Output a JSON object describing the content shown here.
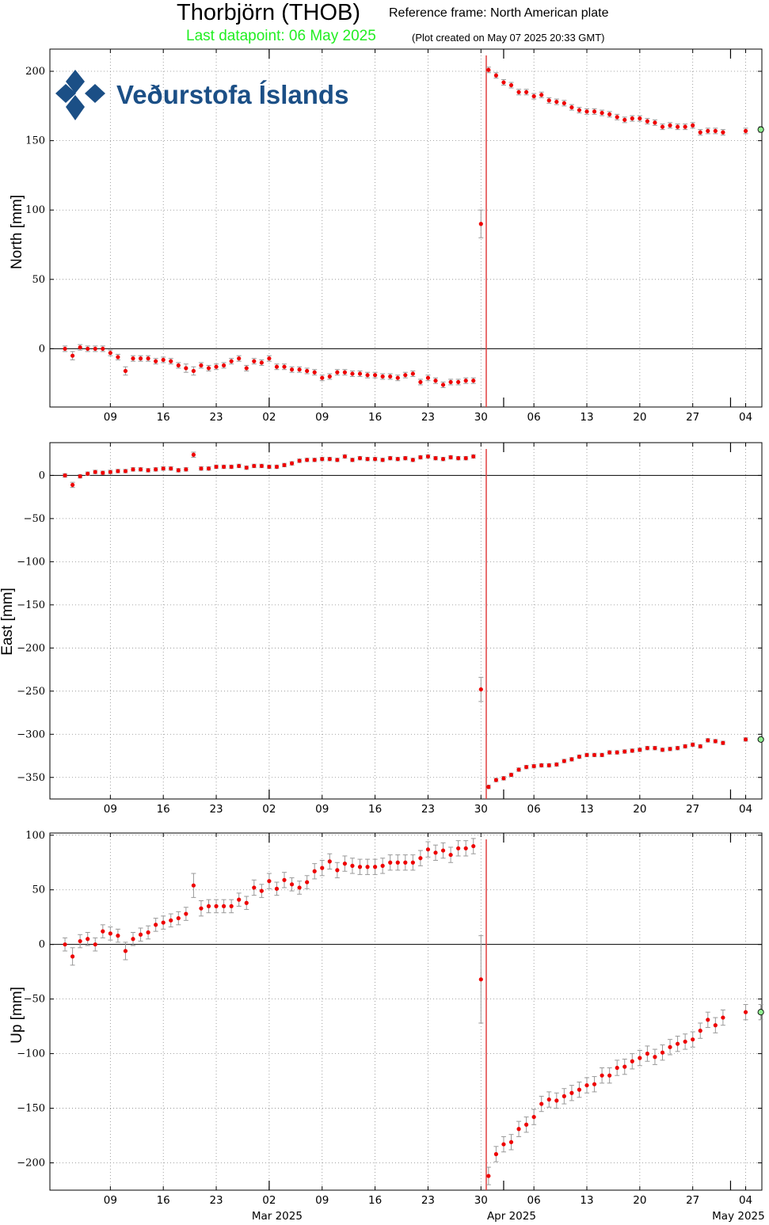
{
  "header": {
    "title": "Thorbjörn (THOB)",
    "reference_frame": "Reference frame: North American plate",
    "last_datapoint": "Last datapoint: 06 May 2025",
    "plot_created": "(Plot created on May 07 2025 20:33 GMT)"
  },
  "logo": {
    "text": "Veðurstofa Íslands",
    "icon": "vedurstofa-logo-icon"
  },
  "colors": {
    "data": "#ee0000",
    "last_point": "#90ee90",
    "event_line": "#e04040",
    "error_bar": "#999999"
  },
  "chart_data": [
    {
      "type": "scatter",
      "ylabel": "North [mm]",
      "ylim": [
        -42,
        216
      ],
      "yticks": [
        0,
        50,
        100,
        150,
        200
      ],
      "grid": true,
      "x": [
        1,
        2,
        3,
        4,
        5,
        6,
        7,
        8,
        9,
        10,
        11,
        12,
        13,
        14,
        15,
        16,
        17,
        18,
        19,
        20,
        21,
        22,
        23,
        24,
        25,
        26,
        27,
        28,
        29,
        30,
        31,
        32,
        33,
        34,
        35,
        36,
        37,
        38,
        39,
        40,
        41,
        42,
        43,
        44,
        45,
        46,
        47,
        48,
        49,
        50,
        51,
        52,
        53,
        54,
        55,
        56,
        57,
        58,
        59,
        60,
        61,
        62,
        63,
        64,
        65,
        66,
        67,
        68,
        69,
        70,
        71,
        72,
        73,
        74,
        75,
        76,
        77,
        78,
        79,
        80,
        81,
        82,
        83,
        84,
        85,
        86,
        87,
        88,
        89,
        90,
        91,
        92,
        93
      ],
      "y": [
        0,
        -5,
        1,
        0,
        0,
        0,
        -3,
        -6,
        -16,
        -7,
        -7,
        -7,
        -9,
        -8,
        -9,
        -12,
        -14,
        -16,
        -12,
        -14,
        -13,
        -12,
        -9,
        -7,
        -14,
        -9,
        -10,
        -7,
        -13,
        -13,
        -15,
        -15,
        -16,
        -17,
        -21,
        -20,
        -17,
        -17,
        -18,
        -18,
        -19,
        -19,
        -20,
        -20,
        -21,
        -19,
        -18,
        -24,
        -21,
        -23,
        -26,
        -24,
        -24,
        -23,
        -23,
        90,
        201,
        197,
        192,
        190,
        185,
        185,
        182,
        183,
        179,
        178,
        177,
        174,
        172,
        171,
        171,
        170,
        169,
        167,
        165,
        166,
        166,
        164,
        163,
        160,
        161,
        160,
        160,
        161,
        156,
        157,
        157,
        156,
        155,
        155,
        157,
        158,
        158
      ],
      "err": [
        2,
        3,
        2,
        2,
        2,
        2,
        2,
        2,
        3,
        2,
        2,
        2,
        2,
        2,
        2,
        2,
        3,
        3,
        2,
        2,
        2,
        2,
        2,
        2,
        2,
        2,
        2,
        2,
        2,
        2,
        2,
        2,
        2,
        2,
        2,
        2,
        2,
        2,
        2,
        2,
        2,
        2,
        2,
        2,
        2,
        2,
        2,
        2,
        2,
        2,
        2,
        2,
        2,
        2,
        2,
        10,
        2,
        2,
        2,
        2,
        2,
        2,
        2,
        2,
        2,
        2,
        2,
        2,
        2,
        2,
        2,
        2,
        2,
        2,
        2,
        2,
        2,
        2,
        2,
        2,
        2,
        2,
        2,
        2,
        2,
        2,
        2,
        2,
        2,
        2,
        2,
        2,
        2
      ],
      "missing_x": [
        89,
        90,
        92
      ]
    },
    {
      "type": "scatter",
      "ylabel": "East [mm]",
      "ylim": [
        -375,
        38
      ],
      "yticks": [
        0,
        -50,
        -100,
        -150,
        -200,
        -250,
        -300,
        -350
      ],
      "grid": true,
      "x": [
        1,
        2,
        3,
        4,
        5,
        6,
        7,
        8,
        9,
        10,
        11,
        12,
        13,
        14,
        15,
        16,
        17,
        18,
        19,
        20,
        21,
        22,
        23,
        24,
        25,
        26,
        27,
        28,
        29,
        30,
        31,
        32,
        33,
        34,
        35,
        36,
        37,
        38,
        39,
        40,
        41,
        42,
        43,
        44,
        45,
        46,
        47,
        48,
        49,
        50,
        51,
        52,
        53,
        54,
        55,
        56,
        57,
        58,
        59,
        60,
        61,
        62,
        63,
        64,
        65,
        66,
        67,
        68,
        69,
        70,
        71,
        72,
        73,
        74,
        75,
        76,
        77,
        78,
        79,
        80,
        81,
        82,
        83,
        84,
        85,
        86,
        87,
        88,
        89,
        90,
        91,
        92,
        93
      ],
      "y": [
        0,
        -11,
        -1,
        2,
        4,
        3,
        4,
        5,
        5,
        7,
        7,
        6,
        7,
        8,
        8,
        6,
        7,
        24,
        8,
        8,
        10,
        10,
        10,
        11,
        9,
        11,
        11,
        10,
        10,
        12,
        14,
        17,
        18,
        18,
        19,
        19,
        18,
        22,
        18,
        20,
        19,
        19,
        18,
        20,
        19,
        20,
        18,
        21,
        22,
        20,
        19,
        21,
        20,
        20,
        22,
        -248,
        -361,
        -353,
        -351,
        -347,
        -341,
        -338,
        -337,
        -336,
        -336,
        -335,
        -331,
        -329,
        -326,
        -324,
        -324,
        -324,
        -321,
        -321,
        -320,
        -319,
        -318,
        -316,
        -316,
        -318,
        -317,
        -316,
        -314,
        -312,
        -314,
        -307,
        -308,
        -310,
        -309,
        -306,
        -306,
        -306,
        -306
      ],
      "err": [
        2,
        3,
        2,
        2,
        2,
        2,
        2,
        2,
        2,
        2,
        2,
        2,
        2,
        2,
        2,
        2,
        2,
        3,
        2,
        2,
        2,
        2,
        2,
        2,
        2,
        2,
        2,
        2,
        2,
        2,
        2,
        2,
        2,
        2,
        2,
        2,
        2,
        2,
        2,
        2,
        2,
        2,
        2,
        2,
        2,
        2,
        2,
        2,
        2,
        2,
        2,
        2,
        2,
        2,
        2,
        14,
        2,
        2,
        2,
        2,
        2,
        2,
        2,
        2,
        2,
        2,
        2,
        2,
        2,
        2,
        2,
        2,
        2,
        2,
        2,
        2,
        2,
        2,
        2,
        2,
        2,
        2,
        2,
        2,
        2,
        2,
        2,
        2,
        2,
        2,
        2,
        2,
        2
      ],
      "missing_x": [
        89,
        90,
        92
      ]
    },
    {
      "type": "scatter",
      "ylabel": "Up [mm]",
      "ylim": [
        -225,
        102
      ],
      "yticks": [
        100,
        50,
        0,
        -50,
        -100,
        -150,
        -200
      ],
      "grid": true,
      "x": [
        1,
        2,
        3,
        4,
        5,
        6,
        7,
        8,
        9,
        10,
        11,
        12,
        13,
        14,
        15,
        16,
        17,
        18,
        19,
        20,
        21,
        22,
        23,
        24,
        25,
        26,
        27,
        28,
        29,
        30,
        31,
        32,
        33,
        34,
        35,
        36,
        37,
        38,
        39,
        40,
        41,
        42,
        43,
        44,
        45,
        46,
        47,
        48,
        49,
        50,
        51,
        52,
        53,
        54,
        55,
        56,
        57,
        58,
        59,
        60,
        61,
        62,
        63,
        64,
        65,
        66,
        67,
        68,
        69,
        70,
        71,
        72,
        73,
        74,
        75,
        76,
        77,
        78,
        79,
        80,
        81,
        82,
        83,
        84,
        85,
        86,
        87,
        88,
        89,
        90,
        91,
        92,
        93
      ],
      "y": [
        0,
        -11,
        3,
        5,
        0,
        12,
        10,
        8,
        -6,
        5,
        9,
        11,
        18,
        20,
        22,
        24,
        28,
        54,
        33,
        35,
        35,
        35,
        35,
        41,
        38,
        52,
        49,
        58,
        51,
        59,
        55,
        52,
        57,
        67,
        70,
        76,
        68,
        74,
        72,
        71,
        71,
        71,
        72,
        75,
        75,
        75,
        75,
        79,
        87,
        84,
        86,
        82,
        88,
        88,
        90,
        -32,
        -212,
        -192,
        -183,
        -181,
        -169,
        -165,
        -158,
        -146,
        -142,
        -143,
        -139,
        -136,
        -133,
        -129,
        -128,
        -120,
        -120,
        -113,
        -112,
        -107,
        -104,
        -100,
        -103,
        -99,
        -94,
        -91,
        -89,
        -87,
        -79,
        -69,
        -74,
        -67,
        -62,
        -62,
        -62,
        -62,
        -62
      ],
      "err": [
        6,
        8,
        6,
        6,
        6,
        6,
        6,
        6,
        8,
        6,
        6,
        6,
        6,
        6,
        6,
        6,
        6,
        11,
        7,
        6,
        6,
        6,
        6,
        6,
        6,
        7,
        6,
        7,
        6,
        7,
        6,
        6,
        6,
        7,
        7,
        7,
        7,
        7,
        7,
        7,
        7,
        7,
        7,
        7,
        7,
        7,
        7,
        7,
        7,
        7,
        7,
        7,
        7,
        7,
        7,
        40,
        8,
        7,
        7,
        7,
        7,
        7,
        7,
        7,
        7,
        7,
        7,
        7,
        7,
        7,
        7,
        7,
        7,
        7,
        7,
        7,
        7,
        7,
        7,
        7,
        7,
        7,
        7,
        7,
        7,
        7,
        7,
        7,
        7,
        7,
        7,
        7,
        7
      ],
      "missing_x": [
        89,
        90,
        92
      ]
    }
  ],
  "x_axis": {
    "tick_labels": [
      "09",
      "16",
      "23",
      "02",
      "09",
      "16",
      "23",
      "30",
      "06",
      "13",
      "20",
      "27",
      "04"
    ],
    "month_labels": [
      "Mar 2025",
      "Apr 2025",
      "May 2025"
    ]
  }
}
